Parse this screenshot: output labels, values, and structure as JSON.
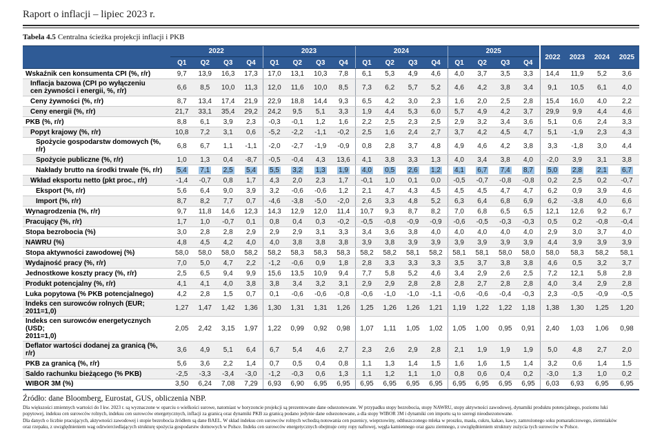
{
  "page": {
    "title": "Raport o inflacji – lipiec 2023 r."
  },
  "colors": {
    "header_blue": "#2F5B96",
    "highlight": "#9DC3E6",
    "alt_row": "#EFEFEF",
    "row_line": "#C9C9C9",
    "group_line": "#959EAB",
    "frame": "#40506B"
  },
  "table": {
    "title_bold": "Tabela 4.5",
    "title_rest": "Centralna ścieżka projekcji inflacji i PKB",
    "year_groups": [
      "2022",
      "2023",
      "2024",
      "2025"
    ],
    "quarter_labels": [
      "Q1",
      "Q2",
      "Q3",
      "Q4"
    ],
    "annual_labels": [
      "2022",
      "2023",
      "2024",
      "2025"
    ],
    "rows": [
      {
        "label": "Wskaźnik cen konsumenta CPI (%, r/r)",
        "indent": 0,
        "highlight": false,
        "values": [
          "9,7",
          "13,9",
          "16,3",
          "17,3",
          "17,0",
          "13,1",
          "10,3",
          "7,8",
          "6,1",
          "5,3",
          "4,9",
          "4,6",
          "4,0",
          "3,7",
          "3,5",
          "3,3",
          "14,4",
          "11,9",
          "5,2",
          "3,6"
        ]
      },
      {
        "label": "Inflacja bazowa (CPI po wyłączeniu\ncen żywności i energii, %, r/r)",
        "indent": 1,
        "highlight": false,
        "values": [
          "6,6",
          "8,5",
          "10,0",
          "11,3",
          "12,0",
          "11,6",
          "10,0",
          "8,5",
          "7,3",
          "6,2",
          "5,7",
          "5,2",
          "4,6",
          "4,2",
          "3,8",
          "3,4",
          "9,1",
          "10,5",
          "6,1",
          "4,0"
        ]
      },
      {
        "label": "Ceny żywności (%, r/r)",
        "indent": 1,
        "highlight": false,
        "values": [
          "8,7",
          "13,4",
          "17,4",
          "21,9",
          "22,9",
          "18,8",
          "14,4",
          "9,3",
          "6,5",
          "4,2",
          "3,0",
          "2,3",
          "1,6",
          "2,0",
          "2,5",
          "2,8",
          "15,4",
          "16,0",
          "4,0",
          "2,2"
        ]
      },
      {
        "label": "Ceny energii (%, r/r)",
        "indent": 1,
        "highlight": false,
        "values": [
          "21,7",
          "33,1",
          "35,4",
          "29,2",
          "24,2",
          "9,5",
          "5,1",
          "3,3",
          "1,9",
          "4,4",
          "5,3",
          "6,0",
          "5,7",
          "4,9",
          "4,2",
          "3,7",
          "29,9",
          "9,9",
          "4,4",
          "4,6"
        ]
      },
      {
        "label": "PKB (%, r/r)",
        "indent": 0,
        "highlight": false,
        "values": [
          "8,8",
          "6,1",
          "3,9",
          "2,3",
          "-0,3",
          "-0,1",
          "1,2",
          "1,6",
          "2,2",
          "2,5",
          "2,3",
          "2,5",
          "2,9",
          "3,2",
          "3,4",
          "3,6",
          "5,1",
          "0,6",
          "2,4",
          "3,3"
        ]
      },
      {
        "label": "Popyt krajowy (%, r/r)",
        "indent": 1,
        "highlight": false,
        "values": [
          "10,8",
          "7,2",
          "3,1",
          "0,6",
          "-5,2",
          "-2,2",
          "-1,1",
          "-0,2",
          "2,5",
          "1,6",
          "2,4",
          "2,7",
          "3,7",
          "4,2",
          "4,5",
          "4,7",
          "5,1",
          "-1,9",
          "2,3",
          "4,3"
        ]
      },
      {
        "label": "Spożycie gospodarstw domowych (%, r/r)",
        "indent": 2,
        "highlight": false,
        "values": [
          "6,8",
          "6,7",
          "1,1",
          "-1,1",
          "-2,0",
          "-2,7",
          "-1,9",
          "-0,9",
          "0,8",
          "2,8",
          "3,7",
          "4,8",
          "4,9",
          "4,6",
          "4,2",
          "3,8",
          "3,3",
          "-1,8",
          "3,0",
          "4,4"
        ]
      },
      {
        "label": "Spożycie publiczne (%, r/r)",
        "indent": 2,
        "highlight": false,
        "values": [
          "1,0",
          "1,3",
          "0,4",
          "-8,7",
          "-0,5",
          "-0,4",
          "4,3",
          "13,6",
          "4,1",
          "3,8",
          "3,3",
          "1,3",
          "4,0",
          "3,4",
          "3,8",
          "4,0",
          "-2,0",
          "3,9",
          "3,1",
          "3,8"
        ]
      },
      {
        "label": "Nakłady brutto na środki trwałe (%, r/r)",
        "indent": 2,
        "highlight": true,
        "values": [
          "5,4",
          "7,1",
          "2,5",
          "5,4",
          "5,5",
          "3,2",
          "1,3",
          "1,9",
          "4,0",
          "0,5",
          "2,6",
          "1,2",
          "4,1",
          "6,7",
          "7,4",
          "8,7",
          "5,0",
          "2,8",
          "2,1",
          "6,7"
        ]
      },
      {
        "label": "Wkład eksportu netto (pkt proc., r/r)",
        "indent": 1,
        "highlight": false,
        "values": [
          "-1,4",
          "-0,7",
          "0,8",
          "1,7",
          "4,3",
          "2,0",
          "2,3",
          "1,7",
          "-0,1",
          "1,0",
          "0,1",
          "0,0",
          "-0,5",
          "-0,7",
          "-0,8",
          "-0,8",
          "0,2",
          "2,5",
          "0,2",
          "-0,7"
        ]
      },
      {
        "label": "Eksport (%, r/r)",
        "indent": 2,
        "highlight": false,
        "values": [
          "5,6",
          "6,4",
          "9,0",
          "3,9",
          "3,2",
          "-0,6",
          "-0,6",
          "1,2",
          "2,1",
          "4,7",
          "4,3",
          "4,5",
          "4,5",
          "4,5",
          "4,7",
          "4,7",
          "6,2",
          "0,9",
          "3,9",
          "4,6"
        ]
      },
      {
        "label": "Import (%, r/r)",
        "indent": 2,
        "highlight": false,
        "values": [
          "8,7",
          "8,2",
          "7,7",
          "0,7",
          "-4,6",
          "-3,8",
          "-5,0",
          "-2,0",
          "2,6",
          "3,3",
          "4,8",
          "5,2",
          "6,3",
          "6,4",
          "6,8",
          "6,9",
          "6,2",
          "-3,8",
          "4,0",
          "6,6"
        ]
      },
      {
        "label": "Wynagrodzenia (%, r/r)",
        "indent": 0,
        "highlight": false,
        "values": [
          "9,7",
          "11,8",
          "14,6",
          "12,3",
          "14,3",
          "12,9",
          "12,0",
          "11,4",
          "10,7",
          "9,3",
          "8,7",
          "8,2",
          "7,0",
          "6,8",
          "6,5",
          "6,5",
          "12,1",
          "12,6",
          "9,2",
          "6,7"
        ]
      },
      {
        "label": "Pracujący (%, r/r)",
        "indent": 0,
        "highlight": false,
        "values": [
          "1,7",
          "1,0",
          "-0,7",
          "0,1",
          "0,8",
          "0,4",
          "0,3",
          "-0,2",
          "-0,5",
          "-0,8",
          "-0,9",
          "-0,9",
          "-0,6",
          "-0,5",
          "-0,3",
          "-0,3",
          "0,5",
          "0,2",
          "-0,8",
          "-0,4"
        ]
      },
      {
        "label": "Stopa bezrobocia (%)",
        "indent": 0,
        "highlight": false,
        "values": [
          "3,0",
          "2,8",
          "2,8",
          "2,9",
          "2,9",
          "2,9",
          "3,1",
          "3,3",
          "3,4",
          "3,6",
          "3,8",
          "4,0",
          "4,0",
          "4,0",
          "4,0",
          "4,0",
          "2,9",
          "3,0",
          "3,7",
          "4,0"
        ]
      },
      {
        "label": "NAWRU (%)",
        "indent": 0,
        "highlight": false,
        "values": [
          "4,8",
          "4,5",
          "4,2",
          "4,0",
          "4,0",
          "3,8",
          "3,8",
          "3,8",
          "3,9",
          "3,8",
          "3,9",
          "3,9",
          "3,9",
          "3,9",
          "3,9",
          "3,9",
          "4,4",
          "3,9",
          "3,9",
          "3,9"
        ]
      },
      {
        "label": "Stopa aktywności zawodowej (%)",
        "indent": 0,
        "highlight": false,
        "values": [
          "58,0",
          "58,0",
          "58,0",
          "58,2",
          "58,2",
          "58,3",
          "58,3",
          "58,3",
          "58,2",
          "58,2",
          "58,1",
          "58,2",
          "58,1",
          "58,1",
          "58,0",
          "58,0",
          "58,0",
          "58,3",
          "58,2",
          "58,1"
        ]
      },
      {
        "label": "Wydajność pracy (%, r/r)",
        "indent": 0,
        "highlight": false,
        "values": [
          "7,0",
          "5,0",
          "4,7",
          "2,2",
          "-1,2",
          "-0,6",
          "0,9",
          "1,8",
          "2,8",
          "3,3",
          "3,3",
          "3,3",
          "3,5",
          "3,7",
          "3,8",
          "3,8",
          "4,6",
          "0,5",
          "3,2",
          "3,7"
        ]
      },
      {
        "label": "Jednostkowe koszty pracy (%, r/r)",
        "indent": 0,
        "highlight": false,
        "values": [
          "2,5",
          "6,5",
          "9,4",
          "9,9",
          "15,6",
          "13,5",
          "10,9",
          "9,4",
          "7,7",
          "5,8",
          "5,2",
          "4,6",
          "3,4",
          "2,9",
          "2,6",
          "2,5",
          "7,2",
          "12,1",
          "5,8",
          "2,8"
        ]
      },
      {
        "label": "Produkt potencjalny (%, r/r)",
        "indent": 0,
        "highlight": false,
        "values": [
          "4,1",
          "4,1",
          "4,0",
          "3,8",
          "3,8",
          "3,4",
          "3,2",
          "3,1",
          "2,9",
          "2,9",
          "2,8",
          "2,8",
          "2,8",
          "2,7",
          "2,8",
          "2,8",
          "4,0",
          "3,4",
          "2,9",
          "2,8"
        ]
      },
      {
        "label": "Luka popytowa (% PKB potencjalnego)",
        "indent": 0,
        "highlight": false,
        "values": [
          "4,2",
          "2,8",
          "1,5",
          "0,7",
          "0,1",
          "-0,6",
          "-0,6",
          "-0,8",
          "-0,6",
          "-1,0",
          "-1,0",
          "-1,1",
          "-0,6",
          "-0,6",
          "-0,4",
          "-0,3",
          "2,3",
          "-0,5",
          "-0,9",
          "-0,5"
        ]
      },
      {
        "label": "Indeks cen surowców rolnych (EUR; 2011=1,0)",
        "indent": 0,
        "highlight": false,
        "values": [
          "1,27",
          "1,47",
          "1,42",
          "1,36",
          "1,30",
          "1,31",
          "1,31",
          "1,26",
          "1,25",
          "1,26",
          "1,26",
          "1,21",
          "1,19",
          "1,22",
          "1,22",
          "1,18",
          "1,38",
          "1,30",
          "1,25",
          "1,20"
        ]
      },
      {
        "label": "Indeks cen surowców energetycznych (USD;\n2011=1,0)",
        "indent": 0,
        "highlight": false,
        "values": [
          "2,05",
          "2,42",
          "3,15",
          "1,97",
          "1,22",
          "0,99",
          "0,92",
          "0,98",
          "1,07",
          "1,11",
          "1,05",
          "1,02",
          "1,05",
          "1,00",
          "0,95",
          "0,91",
          "2,40",
          "1,03",
          "1,06",
          "0,98"
        ]
      },
      {
        "label": "Deflator wartości dodanej za granicą (%, r/r)",
        "indent": 0,
        "highlight": false,
        "values": [
          "3,6",
          "4,9",
          "5,1",
          "6,4",
          "6,7",
          "5,4",
          "4,6",
          "2,7",
          "2,3",
          "2,6",
          "2,9",
          "2,8",
          "2,1",
          "1,9",
          "1,9",
          "1,9",
          "5,0",
          "4,8",
          "2,7",
          "2,0"
        ]
      },
      {
        "label": "PKB za granicą (%, r/r)",
        "indent": 0,
        "highlight": false,
        "values": [
          "5,6",
          "3,6",
          "2,2",
          "1,4",
          "0,7",
          "0,5",
          "0,4",
          "0,8",
          "1,1",
          "1,3",
          "1,4",
          "1,5",
          "1,6",
          "1,6",
          "1,5",
          "1,4",
          "3,2",
          "0,6",
          "1,4",
          "1,5"
        ]
      },
      {
        "label": "Saldo rachunku bieżącego (% PKB)",
        "indent": 0,
        "highlight": false,
        "values": [
          "-2,5",
          "-3,3",
          "-3,4",
          "-3,0",
          "-1,2",
          "-0,3",
          "0,6",
          "1,3",
          "1,1",
          "1,2",
          "1,1",
          "1,0",
          "0,8",
          "0,6",
          "0,4",
          "0,2",
          "-3,0",
          "1,3",
          "1,0",
          "0,2"
        ]
      },
      {
        "label": "WIBOR 3M (%)",
        "indent": 0,
        "highlight": false,
        "values": [
          "3,50",
          "6,24",
          "7,08",
          "7,29",
          "6,93",
          "6,90",
          "6,95",
          "6,95",
          "6,95",
          "6,95",
          "6,95",
          "6,95",
          "6,95",
          "6,95",
          "6,95",
          "6,95",
          "6,03",
          "6,93",
          "6,95",
          "6,95"
        ]
      }
    ]
  },
  "footer": {
    "source": "Źródło: dane Bloomberg, Eurostat, GUS, obliczenia NBP.",
    "notes": [
      "Dla większości zmiennych wartości do I kw. 2023 r. są wyznaczone w oparciu o wielkości surowe, natomiast w horyzoncie projekcji są prezentowane dane odsezonowane. W przypadku stopy bezrobocia, stopy NAWRU, stopy aktywności zawodowej, dynamiki produktu potencjalnego, poziomu luki",
      "popytowej, indeksu cen surowców rolnych, indeksu cen surowców energetycznych, inflacji za granicą oraz dynamiki PKB za granicą podano jedynie dane odsezonowane, a dla stopy WIBOR 3M i dynamiki cen importu są to szeregi nieodsezonowane.",
      "Dla danych o liczbie pracujących, aktywności zawodowej i stopie bezrobocia źródłem są dane BAEL. W skład indeksu cen surowców rolnych wchodzą notowania cen pszenicy, wieprzowiny, odtłuszczonego mleka w proszku, masła, cukru, kakao, kawy, zamrożonego soku pomarańczowego, ziemniaków",
      "oraz rzepaku, z uwzględnieniem wag odzwierciedlających strukturę spożycia gospodarstw domowych w Polsce. Indeks cen surowców energetycznych obejmuje ceny ropy naftowej, węgla kamiennego oraz gazu ziemnego, z uwzględnieniem struktury zużycia tych surowców w Polsce."
    ]
  }
}
